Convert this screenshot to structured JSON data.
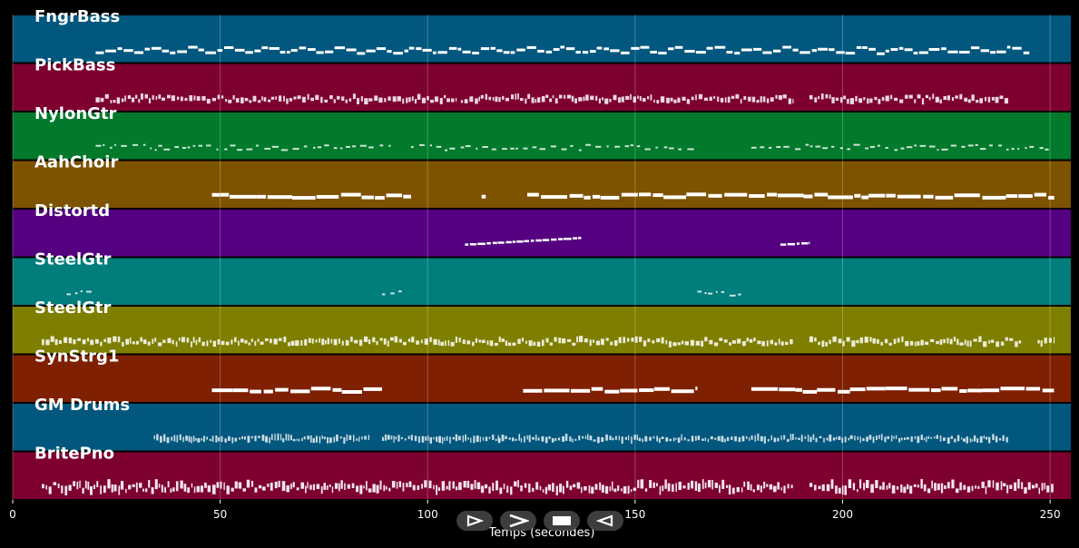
{
  "chart_data": {
    "type": "piano-roll",
    "xlabel": "Temps (secondes)",
    "xlim": [
      0,
      255
    ],
    "xticks": [
      0,
      50,
      100,
      150,
      200,
      250
    ],
    "grid": true,
    "tracks": [
      {
        "name": "FngrBass",
        "color": "#02577e",
        "style": "bass",
        "segments": [
          [
            20,
            245
          ]
        ]
      },
      {
        "name": "PickBass",
        "color": "#7d0030",
        "style": "dense",
        "segments": [
          [
            20,
            107
          ],
          [
            108,
            188
          ],
          [
            192,
            240
          ]
        ]
      },
      {
        "name": "NylonGtr",
        "color": "#017a2b",
        "style": "sparse",
        "segments": [
          [
            20,
            92
          ],
          [
            96,
            165
          ],
          [
            178,
            251
          ]
        ]
      },
      {
        "name": "AahChoir",
        "color": "#7e5300",
        "style": "sustain",
        "segments": [
          [
            48,
            96
          ],
          [
            113,
            114
          ],
          [
            124,
            251
          ]
        ]
      },
      {
        "name": "Distortd",
        "color": "#550081",
        "style": "melody",
        "segments": [
          [
            109,
            137
          ],
          [
            185,
            192
          ]
        ]
      },
      {
        "name": "SteelGtr",
        "color": "#017d7b",
        "style": "sparse",
        "segments": [
          [
            13,
            19
          ],
          [
            89,
            94
          ],
          [
            165,
            176
          ]
        ]
      },
      {
        "name": "SteelGtr",
        "color": "#7e7e00",
        "style": "dense",
        "segments": [
          [
            7,
            188
          ],
          [
            192,
            243
          ],
          [
            247,
            251
          ]
        ]
      },
      {
        "name": "SynStrg1",
        "color": "#7e2001",
        "style": "sustain",
        "segments": [
          [
            48,
            89
          ],
          [
            123,
            165
          ],
          [
            178,
            251
          ]
        ]
      },
      {
        "name": "GM Drums",
        "color": "#02577e",
        "style": "drums",
        "segments": [
          [
            34,
            86
          ],
          [
            89,
            117
          ],
          [
            117,
            240
          ]
        ]
      },
      {
        "name": "BritePno",
        "color": "#7d0030",
        "style": "piano",
        "segments": [
          [
            7,
            188
          ],
          [
            192,
            251
          ]
        ]
      }
    ]
  },
  "controls": [
    {
      "name": "play",
      "icon": "play-outline-icon"
    },
    {
      "name": "forward",
      "icon": "chevron-right-icon"
    },
    {
      "name": "stop",
      "icon": "stop-icon"
    },
    {
      "name": "back",
      "icon": "play-left-outline-icon"
    }
  ]
}
